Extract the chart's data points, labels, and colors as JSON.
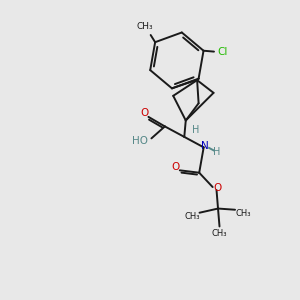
{
  "background_color": "#e8e8e8",
  "bond_color": "#1a1a1a",
  "oxygen_color": "#cc0000",
  "nitrogen_color": "#0000bb",
  "chlorine_color": "#22bb00",
  "hydrogen_color": "#558888",
  "figsize": [
    3.0,
    3.0
  ],
  "dpi": 100,
  "xlim": [
    0,
    10
  ],
  "ylim": [
    0,
    10
  ]
}
